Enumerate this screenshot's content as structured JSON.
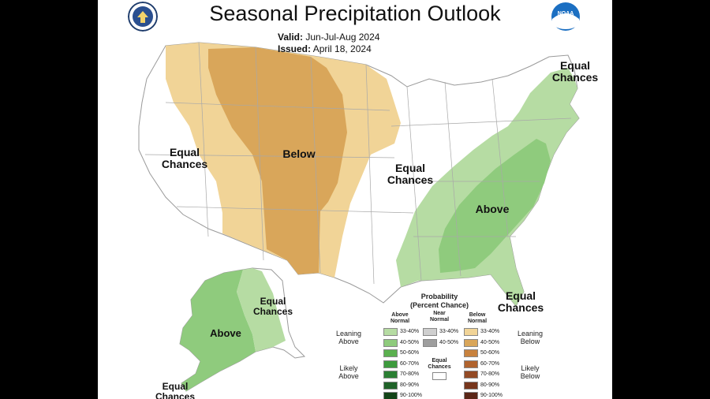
{
  "title": "Seasonal Precipitation Outlook",
  "valid_label": "Valid:",
  "valid_value": "Jun-Jul-Aug 2024",
  "issued_label": "Issued:",
  "issued_value": "April 18, 2024",
  "logo_left": "Department of Commerce seal",
  "logo_right": "NOAA",
  "regions": {
    "west_equal": "Equal Chances",
    "below": "Below",
    "central_equal": "Equal Chances",
    "northeast_equal": "Equal Chances",
    "above": "Above",
    "florida_equal": "Equal Chances",
    "alaska_above": "Above",
    "alaska_equal": "Equal Chances",
    "alaska_bottom_equal": "Equal Chances"
  },
  "legend": {
    "title": "Probability",
    "subtitle": "(Percent Chance)",
    "above_header": "Above Normal",
    "near_header": "Near Normal",
    "below_header": "Below Normal",
    "equal_label": "Equal Chances",
    "leaning_above": "Leaning Above",
    "likely_above": "Likely Above",
    "leaning_below": "Leaning Below",
    "likely_below": "Likely Below",
    "above": [
      {
        "pct": "33-40%",
        "color": "#b6dca3"
      },
      {
        "pct": "40-50%",
        "color": "#8fcb7d"
      },
      {
        "pct": "50-60%",
        "color": "#5bb04f"
      },
      {
        "pct": "60-70%",
        "color": "#3c9a3c"
      },
      {
        "pct": "70-80%",
        "color": "#2b7f33"
      },
      {
        "pct": "80-90%",
        "color": "#1f6228"
      },
      {
        "pct": "90-100%",
        "color": "#134418"
      }
    ],
    "near": [
      {
        "pct": "33-40%",
        "color": "#cfcfcf"
      },
      {
        "pct": "40-50%",
        "color": "#9e9e9e"
      }
    ],
    "below": [
      {
        "pct": "33-40%",
        "color": "#f1d497"
      },
      {
        "pct": "40-50%",
        "color": "#d9a65a"
      },
      {
        "pct": "50-60%",
        "color": "#c8823e"
      },
      {
        "pct": "60-70%",
        "color": "#b0632e"
      },
      {
        "pct": "70-80%",
        "color": "#934a25"
      },
      {
        "pct": "80-90%",
        "color": "#77361c"
      },
      {
        "pct": "90-100%",
        "color": "#5a2617"
      }
    ]
  }
}
